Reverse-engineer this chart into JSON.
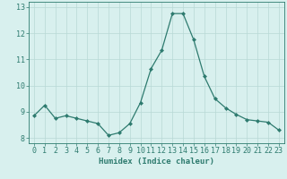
{
  "x": [
    0,
    1,
    2,
    3,
    4,
    5,
    6,
    7,
    8,
    9,
    10,
    11,
    12,
    13,
    14,
    15,
    16,
    17,
    18,
    19,
    20,
    21,
    22,
    23
  ],
  "y": [
    8.85,
    9.25,
    8.75,
    8.85,
    8.75,
    8.65,
    8.55,
    8.1,
    8.2,
    8.55,
    9.35,
    10.65,
    11.35,
    12.75,
    12.75,
    11.75,
    10.35,
    9.5,
    9.15,
    8.9,
    8.7,
    8.65,
    8.6,
    8.3
  ],
  "xlabel": "Humidex (Indice chaleur)",
  "ylim": [
    7.8,
    13.2
  ],
  "yticks": [
    8,
    9,
    10,
    11,
    12,
    13
  ],
  "line_color": "#2e7b6f",
  "marker_color": "#2e7b6f",
  "bg_color": "#d8f0ee",
  "grid_color": "#b8d8d5",
  "xlabel_fontsize": 6.5,
  "tick_fontsize": 6
}
